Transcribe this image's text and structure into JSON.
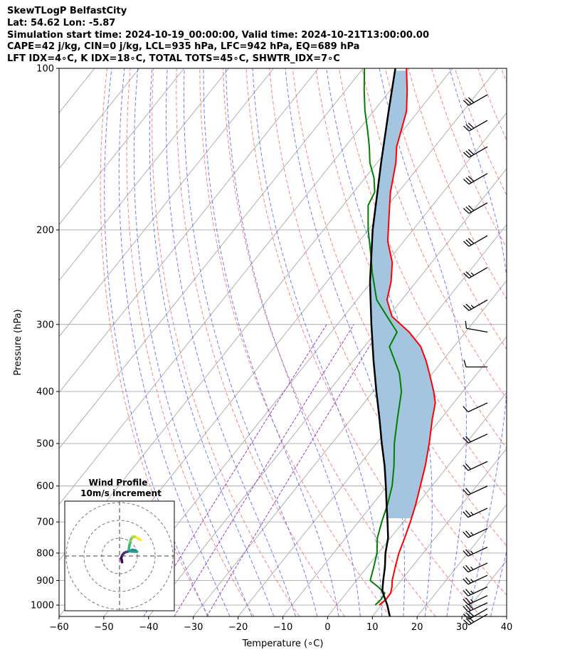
{
  "header": {
    "line1": "SkewTLogP BelfastCity",
    "line2": "Lat: 54.62   Lon: -5.87",
    "line3": "Simulation start time: 2024-10-19_00:00:00, Valid time: 2024-10-21T13:00:00.00",
    "line4": "CAPE=42 j/kg, CIN=0 j/kg, LCL=935 hPa, LFC=942 hPa, EQ=689 hPa",
    "line5": "LFT IDX=4∘C, K IDX=18∘C, TOTAL TOTS=45∘C, SHWTR_IDX=7∘C"
  },
  "chart_data": [
    {
      "type": "line",
      "chart": "skew-t log-p",
      "xlabel": "Temperature (∘C)",
      "ylabel": "Pressure (hPa)",
      "xlim": [
        -60,
        40
      ],
      "ylim": [
        1050,
        100
      ],
      "y_scale": "log",
      "x_ticks": [
        -60,
        -50,
        -40,
        -30,
        -20,
        -10,
        0,
        10,
        20,
        30,
        40
      ],
      "x_tick_labels": [
        "−60",
        "−50",
        "−40",
        "−30",
        "−20",
        "−10",
        "0",
        "10",
        "20",
        "30",
        "40"
      ],
      "y_ticks": [
        100,
        200,
        300,
        400,
        500,
        600,
        700,
        800,
        900,
        1000
      ],
      "y_tick_labels": [
        "100",
        "200",
        "300",
        "400",
        "500",
        "600",
        "700",
        "800",
        "900",
        "1000"
      ],
      "grid": true,
      "colors": {
        "temperature": "#ff0000",
        "dewpoint": "#008000",
        "parcel": "#000000",
        "cape_fill": "#a3c5e0",
        "dry_adiabat": "#ff6060",
        "moist_adiabat": "#4a5cff",
        "mixing_ratio": "#9b40c8",
        "isotherm": "#aaaaaa",
        "barb": "#000000"
      },
      "series": [
        {
          "key": "temperature",
          "points": [
            [
              1000,
              9.5
            ],
            [
              975,
              10.0
            ],
            [
              950,
              9.9
            ],
            [
              925,
              9.1
            ],
            [
              900,
              8.0
            ],
            [
              850,
              6.3
            ],
            [
              800,
              4.6
            ],
            [
              750,
              3.2
            ],
            [
              700,
              1.6
            ],
            [
              650,
              -0.3
            ],
            [
              600,
              -2.6
            ],
            [
              550,
              -5.1
            ],
            [
              500,
              -8.2
            ],
            [
              450,
              -11.9
            ],
            [
              420,
              -14.1
            ],
            [
              400,
              -16.5
            ],
            [
              370,
              -20.7
            ],
            [
              350,
              -23.8
            ],
            [
              330,
              -27.4
            ],
            [
              310,
              -32.6
            ],
            [
              290,
              -39.2
            ],
            [
              270,
              -43.3
            ],
            [
              250,
              -45.6
            ],
            [
              230,
              -48.8
            ],
            [
              210,
              -53.6
            ],
            [
              190,
              -57.5
            ],
            [
              170,
              -61.8
            ],
            [
              150,
              -65.8
            ],
            [
              140,
              -68.5
            ],
            [
              130,
              -70.5
            ],
            [
              120,
              -72.7
            ],
            [
              110,
              -76.2
            ],
            [
              100,
              -80.3
            ]
          ]
        },
        {
          "key": "dewpoint",
          "points": [
            [
              1000,
              8.6
            ],
            [
              975,
              8.9
            ],
            [
              950,
              8.6
            ],
            [
              925,
              6.0
            ],
            [
              900,
              3.1
            ],
            [
              850,
              1.5
            ],
            [
              800,
              -0.3
            ],
            [
              750,
              -2.9
            ],
            [
              700,
              -4.8
            ],
            [
              650,
              -6.6
            ],
            [
              600,
              -8.9
            ],
            [
              550,
              -12.1
            ],
            [
              500,
              -16.0
            ],
            [
              450,
              -19.7
            ],
            [
              400,
              -23.7
            ],
            [
              370,
              -27.4
            ],
            [
              330,
              -34.4
            ],
            [
              310,
              -35.3
            ],
            [
              290,
              -40.3
            ],
            [
              270,
              -45.6
            ],
            [
              260,
              -47.5
            ],
            [
              240,
              -51.5
            ],
            [
              220,
              -55.5
            ],
            [
              200,
              -60.0
            ],
            [
              180,
              -64.4
            ],
            [
              170,
              -65.3
            ],
            [
              160,
              -68.0
            ],
            [
              150,
              -71.6
            ],
            [
              140,
              -74.6
            ],
            [
              130,
              -78.1
            ],
            [
              120,
              -82.0
            ],
            [
              110,
              -85.8
            ],
            [
              100,
              -89.7
            ]
          ]
        },
        {
          "key": "parcel",
          "points": [
            [
              1050,
              13.9
            ],
            [
              1000,
              11.3
            ],
            [
              950,
              8.2
            ],
            [
              942,
              7.7
            ],
            [
              900,
              6.0
            ],
            [
              850,
              4.0
            ],
            [
              800,
              1.6
            ],
            [
              750,
              -0.5
            ],
            [
              700,
              -3.5
            ],
            [
              650,
              -6.8
            ],
            [
              600,
              -10.3
            ],
            [
              550,
              -14.2
            ],
            [
              500,
              -18.8
            ],
            [
              450,
              -23.7
            ],
            [
              400,
              -29.3
            ],
            [
              350,
              -35.5
            ],
            [
              300,
              -42.4
            ],
            [
              250,
              -50.3
            ],
            [
              200,
              -59.0
            ],
            [
              150,
              -69.1
            ],
            [
              120,
              -76.7
            ],
            [
              100,
              -82.8
            ]
          ]
        }
      ],
      "barbs": [
        {
          "p": 1040,
          "speed": 30,
          "direction": 240
        },
        {
          "p": 1015,
          "speed": 30,
          "direction": 240
        },
        {
          "p": 990,
          "speed": 30,
          "direction": 245
        },
        {
          "p": 960,
          "speed": 25,
          "direction": 245
        },
        {
          "p": 925,
          "speed": 25,
          "direction": 245
        },
        {
          "p": 880,
          "speed": 25,
          "direction": 245
        },
        {
          "p": 835,
          "speed": 25,
          "direction": 245
        },
        {
          "p": 780,
          "speed": 25,
          "direction": 245
        },
        {
          "p": 720,
          "speed": 25,
          "direction": 245
        },
        {
          "p": 660,
          "speed": 25,
          "direction": 245
        },
        {
          "p": 600,
          "speed": 20,
          "direction": 245
        },
        {
          "p": 540,
          "speed": 20,
          "direction": 245
        },
        {
          "p": 480,
          "speed": 20,
          "direction": 245
        },
        {
          "p": 420,
          "speed": 10,
          "direction": 245
        },
        {
          "p": 360,
          "speed": 10,
          "direction": 270
        },
        {
          "p": 310,
          "speed": 10,
          "direction": 280
        },
        {
          "p": 270,
          "speed": 25,
          "direction": 240
        },
        {
          "p": 235,
          "speed": 25,
          "direction": 240
        },
        {
          "p": 205,
          "speed": 30,
          "direction": 240
        },
        {
          "p": 178,
          "speed": 30,
          "direction": 240
        },
        {
          "p": 157,
          "speed": 30,
          "direction": 240
        },
        {
          "p": 140,
          "speed": 30,
          "direction": 240
        },
        {
          "p": 125,
          "speed": 30,
          "direction": 240
        },
        {
          "p": 112,
          "speed": 30,
          "direction": 240
        }
      ]
    },
    {
      "type": "line",
      "chart": "hodograph",
      "title": "Wind Profile",
      "subtitle": "10m/s increment",
      "ring_increment": 10,
      "colormap": "viridis",
      "path_uv": [
        [
          1.4,
          -3.5
        ],
        [
          1.2,
          -2.2
        ],
        [
          0.9,
          -1.2
        ],
        [
          1.5,
          0.4
        ],
        [
          2.5,
          1.6
        ],
        [
          3.6,
          2.2
        ],
        [
          4.6,
          2.4
        ],
        [
          5.1,
          2.6
        ],
        [
          6.0,
          3.0
        ],
        [
          7.2,
          3.4
        ],
        [
          8.9,
          3.1
        ],
        [
          9.8,
          2.4
        ],
        [
          6.5,
          2.5
        ],
        [
          5.8,
          3.1
        ],
        [
          5.2,
          3.8
        ],
        [
          5.5,
          5.6
        ],
        [
          5.9,
          7.6
        ],
        [
          6.5,
          9.6
        ],
        [
          7.4,
          10.8
        ],
        [
          8.5,
          10.8
        ],
        [
          9.6,
          10.3
        ],
        [
          10.8,
          9.6
        ],
        [
          11.8,
          9.0
        ]
      ]
    }
  ]
}
